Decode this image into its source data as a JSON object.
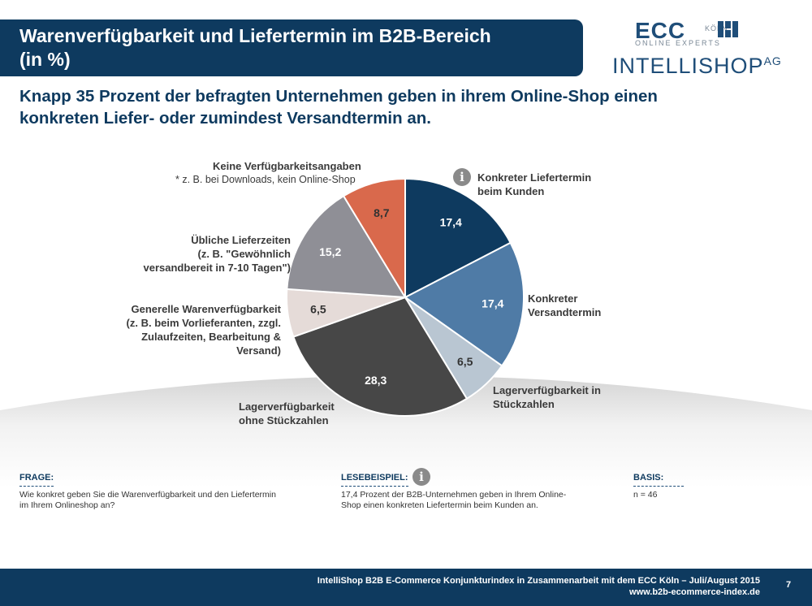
{
  "header": {
    "title": "Warenverfügbarkeit und Liefertermin im B2B-Bereich\n(in %)",
    "subtitle": "Knapp 35 Prozent der befragten Unternehmen geben in ihrem Online-Shop einen\nkonkreten Liefer- oder zumindest Versandtermin an."
  },
  "logos": {
    "ecc_main": "ECC",
    "ecc_city": "KÖLN",
    "ecc_sub": "ONLINE EXPERTS",
    "intellishop": "INTELLISHOP",
    "intellishop_suffix": "AG"
  },
  "chart_data": {
    "type": "pie",
    "start_angle": "12 o'clock, clockwise",
    "slices": [
      {
        "label": "Konkreter Liefertermin\nbeim Kunden",
        "value": 17.4,
        "value_label": "17,4",
        "color": "#0e3a5f"
      },
      {
        "label": "Konkreter\nVersandtermin",
        "value": 17.4,
        "value_label": "17,4",
        "color": "#4f7ba6"
      },
      {
        "label": "Lagerverfügbarkeit in\nStückzahlen",
        "value": 6.5,
        "value_label": "6,5",
        "color": "#b9c6d2"
      },
      {
        "label": "Lagerverfügbarkeit\nohne Stückzahlen",
        "value": 28.3,
        "value_label": "28,3",
        "color": "#474747"
      },
      {
        "label": "Generelle Warenverfügbarkeit\n(z. B. beim Vorlieferanten, zzgl.\nZulaufzeiten, Bearbeitung &\nVersand)",
        "value": 6.5,
        "value_label": "6,5",
        "color": "#e5dbd8"
      },
      {
        "label": "Übliche Lieferzeiten\n(z. B. \"Gewöhnlich\nversandbereit in 7-10 Tagen\")",
        "value": 15.2,
        "value_label": "15,2",
        "color": "#8f8f96"
      },
      {
        "label": "Keine Verfügbarkeitsangaben",
        "value": 8.7,
        "value_label": "8,7",
        "color": "#d9694c"
      }
    ],
    "note": "* z. B. bei Downloads, kein Online-Shop"
  },
  "icons": {
    "info_glyph": "i"
  },
  "bottom": {
    "frage_head": "FRAGE:",
    "frage_text": "Wie konkret geben Sie die Warenverfügbarkeit und den Liefertermin\nim Ihrem Onlineshop an?",
    "lese_head": "LESEBEISPIEL:",
    "lese_text": "17,4 Prozent der B2B-Unternehmen geben in Ihrem Online-\nShop einen konkreten Liefertermin beim Kunden an.",
    "basis_head": "BASIS:",
    "basis_text": "n = 46"
  },
  "footer": {
    "text": "IntelliShop B2B E-Commerce Konjunkturindex in Zusammenarbeit mit dem ECC Köln – Juli/August 2015\nwww.b2b-ecommerce-index.de",
    "page": "7"
  }
}
